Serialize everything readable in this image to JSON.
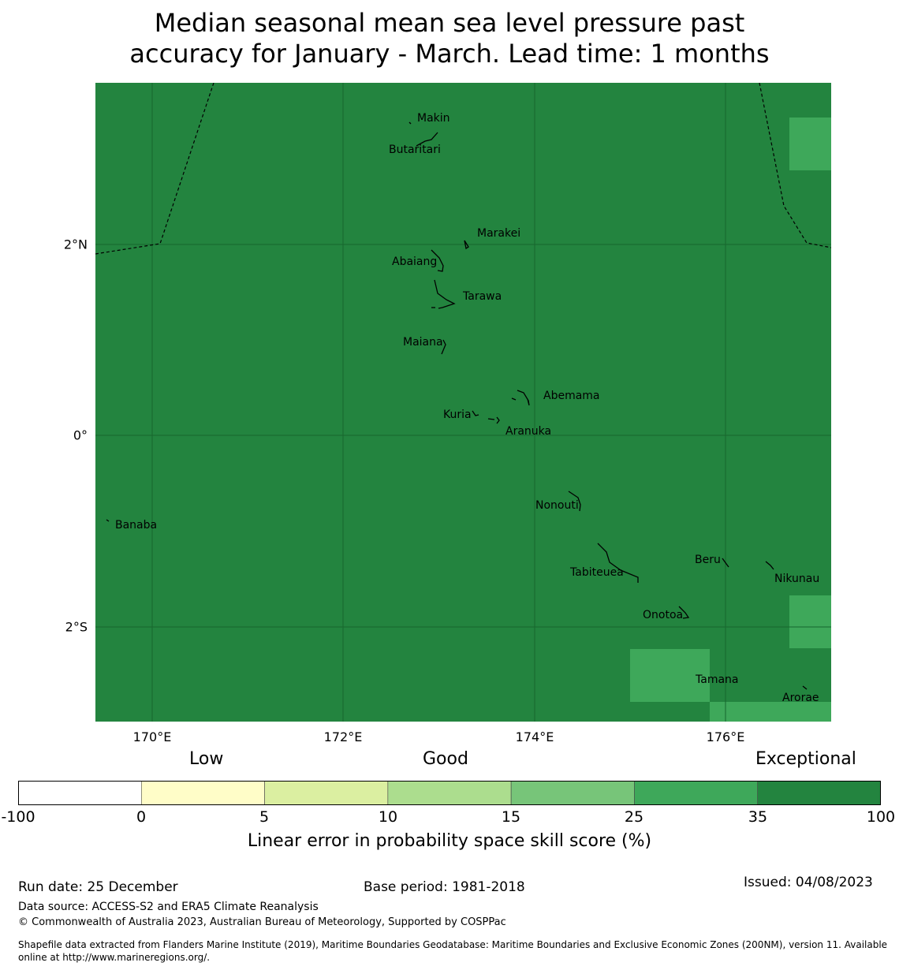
{
  "title": {
    "line1": "Median seasonal mean sea level pressure past",
    "line2": "accuracy for January - March. Lead time: 1 months"
  },
  "map": {
    "background_color": "#23843f",
    "patch_color": "#3ea85a",
    "lat_ticks": [
      "2°N",
      "0°",
      "2°S"
    ],
    "lon_ticks": [
      "170°E",
      "172°E",
      "174°E",
      "176°E"
    ],
    "places": {
      "makin": "Makin",
      "butaritari": "Butaritari",
      "marakei": "Marakei",
      "abaiang": "Abaiang",
      "tarawa": "Tarawa",
      "maiana": "Maiana",
      "abemama": "Abemama",
      "kuria": "Kuria",
      "aranuka": "Aranuka",
      "nonouti": "Nonouti",
      "banaba": "Banaba",
      "beru": "Beru",
      "tabiteuea": "Tabiteuea",
      "nikunau": "Nikunau",
      "onotoa": "Onotoa",
      "tamana": "Tamana",
      "arorae": "Arorae"
    }
  },
  "legend": {
    "categories": [
      "Low",
      "Good",
      "Exceptional"
    ],
    "bins": [
      {
        "from": -100,
        "to": 0,
        "color": "#ffffff"
      },
      {
        "from": 0,
        "to": 5,
        "color": "#fffdc8"
      },
      {
        "from": 5,
        "to": 10,
        "color": "#dbefa1"
      },
      {
        "from": 10,
        "to": 15,
        "color": "#acdd8e"
      },
      {
        "from": 15,
        "to": 25,
        "color": "#77c579"
      },
      {
        "from": 25,
        "to": 35,
        "color": "#3ea85a"
      },
      {
        "from": 35,
        "to": 100,
        "color": "#23843f"
      }
    ],
    "ticks": [
      "-100",
      "0",
      "5",
      "10",
      "15",
      "25",
      "35",
      "100"
    ],
    "label": "Linear error in probability space skill score (%)"
  },
  "footer": {
    "run_date": "Run date: 25 December",
    "base_period": "Base period: 1981-2018",
    "issued": "Issued: 04/08/2023",
    "data_source": "Data source: ACCESS-S2 and ERA5 Climate Reanalysis",
    "copyright": "© Commonwealth of Australia 2023, Australian Bureau of Meteorology, Supported by COSPPac",
    "shapefile_line1": "Shapefile data extracted from Flanders Marine Institute (2019), Maritime Boundaries Geodatabase: Maritime Boundaries and Exclusive Economic Zones (200NM), version 11. Available",
    "shapefile_line2": "online at http://www.marineregions.org/."
  }
}
